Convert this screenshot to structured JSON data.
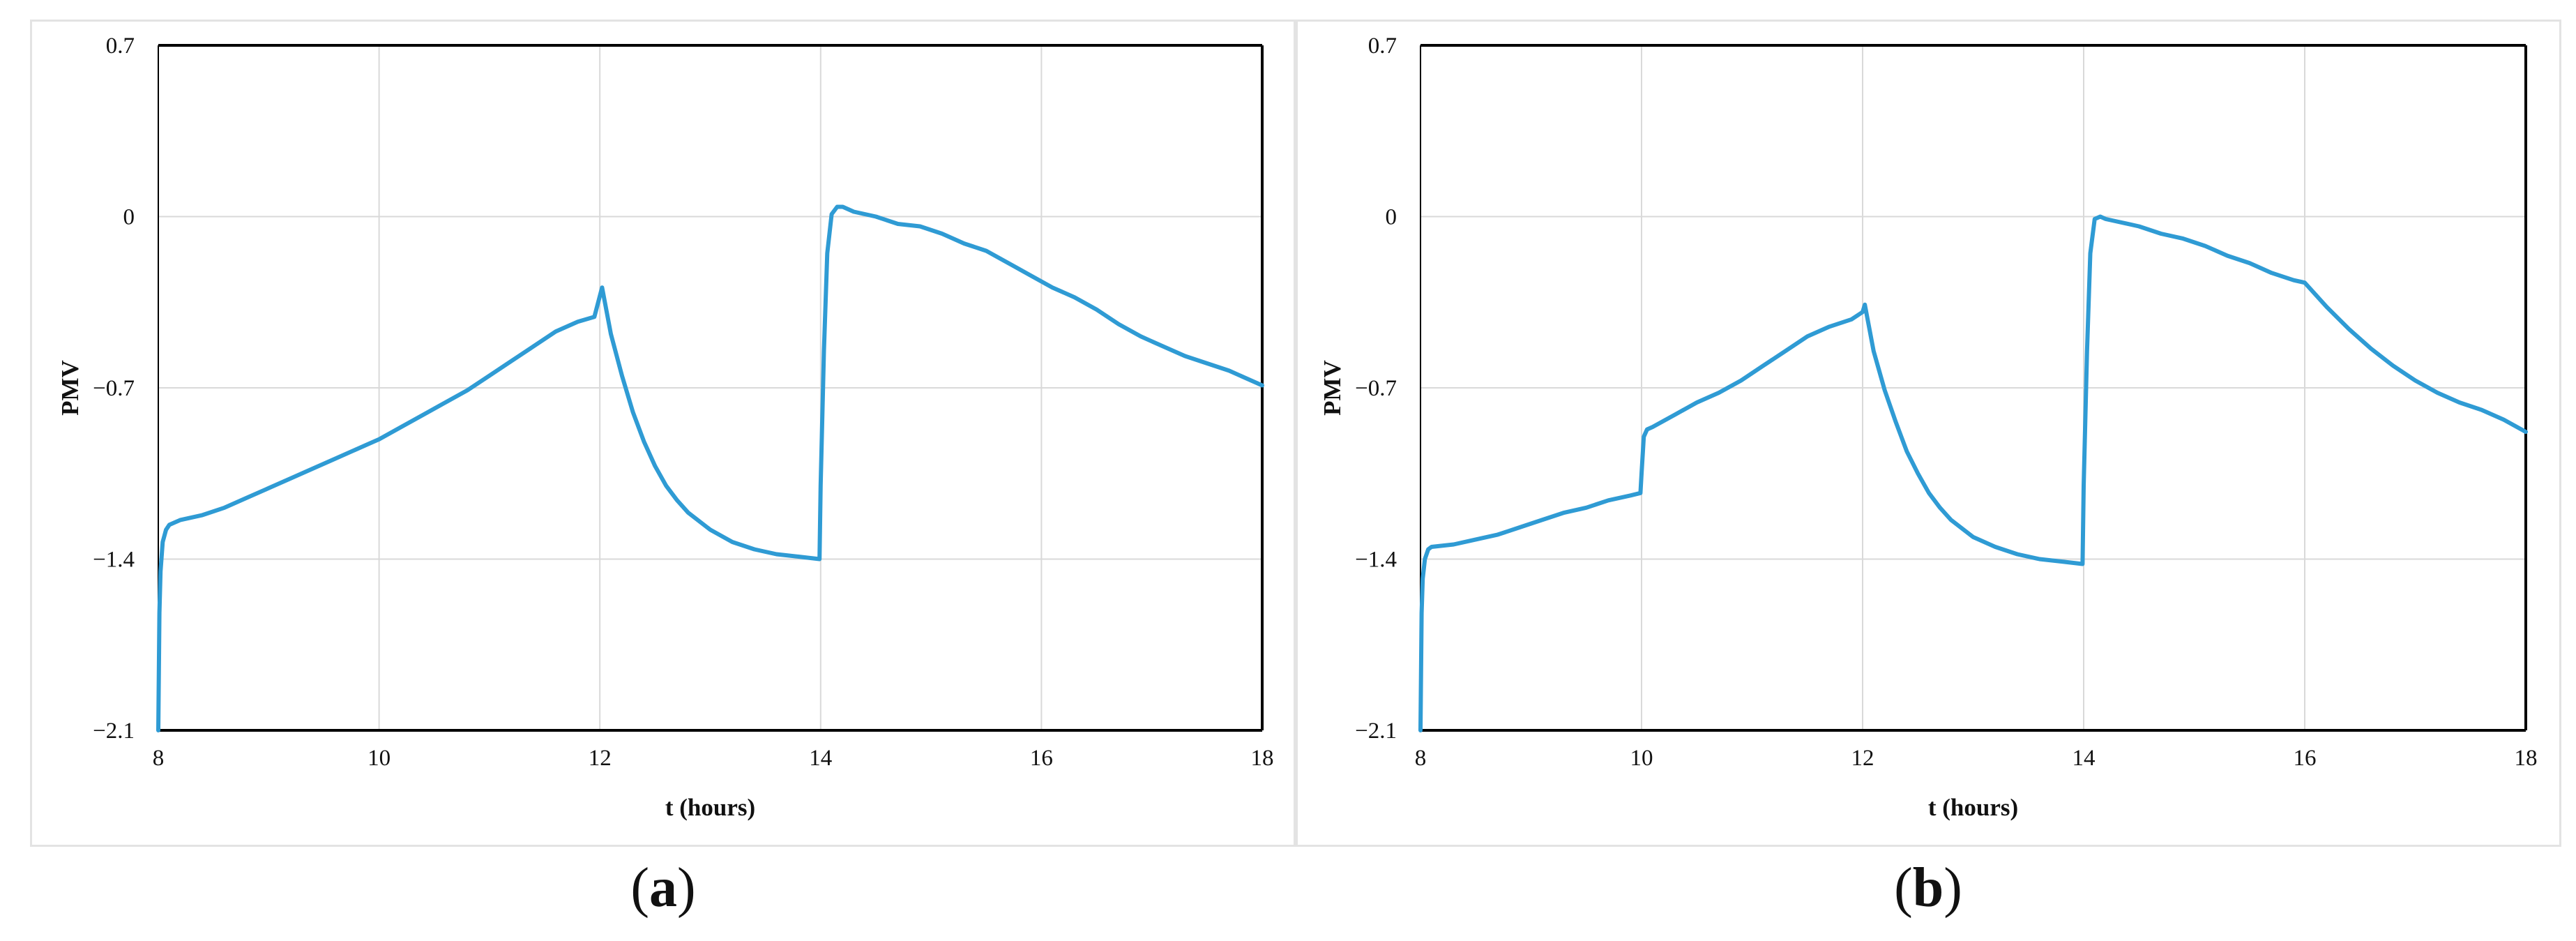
{
  "colors": {
    "line": "#2f9bd4",
    "grid": "#d9d9d9",
    "axis": "#000000"
  },
  "captions": {
    "a": "a",
    "b": "b"
  },
  "chart_data": [
    {
      "type": "line",
      "panel": "a",
      "xlabel": "t (hours)",
      "ylabel": "PMV",
      "xlim": [
        8,
        18
      ],
      "ylim": [
        -2.1,
        0.7
      ],
      "xticks": [
        "8",
        "10",
        "12",
        "14",
        "16",
        "18"
      ],
      "yticks": [
        "0.7",
        "0",
        "−0.7",
        "−1.4",
        "−2.1"
      ],
      "grid": true,
      "series": [
        {
          "x": [
            8.0,
            8.01,
            8.02,
            8.04,
            8.07,
            8.1,
            8.2,
            8.4,
            8.6,
            8.8,
            9.0,
            9.2,
            9.4,
            9.6,
            9.8,
            10.0,
            10.2,
            10.4,
            10.6,
            10.8,
            11.0,
            11.2,
            11.4,
            11.6,
            11.8,
            11.95,
            12.02,
            12.1,
            12.2,
            12.3,
            12.4,
            12.5,
            12.6,
            12.7,
            12.8,
            13.0,
            13.2,
            13.4,
            13.6,
            13.8,
            13.99,
            14.0,
            14.03,
            14.06,
            14.1,
            14.15,
            14.2,
            14.3,
            14.5,
            14.7,
            14.9,
            15.1,
            15.3,
            15.5,
            15.7,
            15.9,
            16.1,
            16.3,
            16.5,
            16.7,
            16.9,
            17.1,
            17.3,
            17.5,
            17.7,
            17.9,
            18.0
          ],
          "y": [
            -2.1,
            -1.62,
            -1.45,
            -1.33,
            -1.28,
            -1.26,
            -1.24,
            -1.22,
            -1.19,
            -1.15,
            -1.11,
            -1.07,
            -1.03,
            -0.99,
            -0.95,
            -0.91,
            -0.86,
            -0.81,
            -0.76,
            -0.71,
            -0.65,
            -0.59,
            -0.53,
            -0.47,
            -0.43,
            -0.41,
            -0.29,
            -0.48,
            -0.65,
            -0.8,
            -0.92,
            -1.02,
            -1.1,
            -1.16,
            -1.21,
            -1.28,
            -1.33,
            -1.36,
            -1.38,
            -1.39,
            -1.4,
            -1.1,
            -0.55,
            -0.15,
            0.01,
            0.04,
            0.04,
            0.02,
            0.0,
            -0.03,
            -0.04,
            -0.07,
            -0.11,
            -0.14,
            -0.19,
            -0.24,
            -0.29,
            -0.33,
            -0.38,
            -0.44,
            -0.49,
            -0.53,
            -0.57,
            -0.6,
            -0.63,
            -0.67,
            -0.69
          ]
        }
      ]
    },
    {
      "type": "line",
      "panel": "b",
      "xlabel": "t (hours)",
      "ylabel": "PMV",
      "xlim": [
        8,
        18
      ],
      "ylim": [
        -2.1,
        0.7
      ],
      "xticks": [
        "8",
        "10",
        "12",
        "14",
        "16",
        "18"
      ],
      "yticks": [
        "0.7",
        "0",
        "−0.7",
        "−1.4",
        "−2.1"
      ],
      "grid": true,
      "series": [
        {
          "x": [
            8.0,
            8.01,
            8.02,
            8.04,
            8.07,
            8.1,
            8.3,
            8.5,
            8.7,
            8.9,
            9.1,
            9.3,
            9.5,
            9.7,
            9.9,
            9.99,
            10.0,
            10.02,
            10.05,
            10.1,
            10.3,
            10.5,
            10.7,
            10.9,
            11.1,
            11.3,
            11.5,
            11.7,
            11.9,
            12.0,
            12.02,
            12.1,
            12.2,
            12.3,
            12.4,
            12.5,
            12.6,
            12.7,
            12.8,
            13.0,
            13.2,
            13.4,
            13.6,
            13.8,
            13.99,
            14.0,
            14.03,
            14.06,
            14.1,
            14.15,
            14.2,
            14.3,
            14.5,
            14.7,
            14.9,
            15.1,
            15.3,
            15.5,
            15.7,
            15.9,
            16.0,
            16.2,
            16.4,
            16.6,
            16.8,
            17.0,
            17.2,
            17.4,
            17.6,
            17.8,
            18.0
          ],
          "y": [
            -2.1,
            -1.62,
            -1.48,
            -1.4,
            -1.36,
            -1.35,
            -1.34,
            -1.32,
            -1.3,
            -1.27,
            -1.24,
            -1.21,
            -1.19,
            -1.16,
            -1.14,
            -1.13,
            -1.05,
            -0.9,
            -0.87,
            -0.86,
            -0.81,
            -0.76,
            -0.72,
            -0.67,
            -0.61,
            -0.55,
            -0.49,
            -0.45,
            -0.42,
            -0.39,
            -0.36,
            -0.55,
            -0.71,
            -0.84,
            -0.96,
            -1.05,
            -1.13,
            -1.19,
            -1.24,
            -1.31,
            -1.35,
            -1.38,
            -1.4,
            -1.41,
            -1.42,
            -1.1,
            -0.55,
            -0.15,
            -0.01,
            0.0,
            -0.01,
            -0.02,
            -0.04,
            -0.07,
            -0.09,
            -0.12,
            -0.16,
            -0.19,
            -0.23,
            -0.26,
            -0.27,
            -0.37,
            -0.46,
            -0.54,
            -0.61,
            -0.67,
            -0.72,
            -0.76,
            -0.79,
            -0.83,
            -0.88
          ]
        }
      ]
    }
  ]
}
